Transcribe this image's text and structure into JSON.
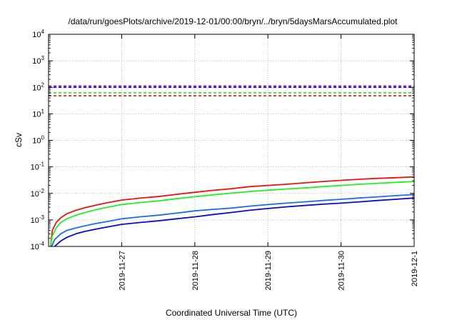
{
  "chart_data": {
    "type": "line",
    "title": "/data/run/goesPlots/archive/2019-12-01/00:00/bryn/../bryn/5daysMarsAccumulated.plot",
    "xlabel": "Coordinated Universal Time (UTC)",
    "ylabel": "cSv",
    "y_scale": "log",
    "ylim": [
      0.0001,
      10000
    ],
    "xlim": [
      "2019-11-26T00:00",
      "2019-12-01T00:00"
    ],
    "grid": true,
    "legend": "none",
    "x_ticks": [
      "2019-11-27",
      "2019-11-28",
      "2019-11-29",
      "2019-11-30",
      "2019-12-1"
    ],
    "y_ticks": [
      {
        "value": 0.0001,
        "base": "10",
        "exp": "-4"
      },
      {
        "value": 0.001,
        "base": "10",
        "exp": "-3"
      },
      {
        "value": 0.01,
        "base": "10",
        "exp": "-2"
      },
      {
        "value": 0.1,
        "base": "10",
        "exp": "-1"
      },
      {
        "value": 1,
        "base": "10",
        "exp": "0"
      },
      {
        "value": 10,
        "base": "10",
        "exp": "1"
      },
      {
        "value": 100,
        "base": "10",
        "exp": "2"
      },
      {
        "value": 1000,
        "base": "10",
        "exp": "3"
      },
      {
        "value": 10000,
        "base": "10",
        "exp": "4"
      }
    ],
    "reference_lines": [
      {
        "color": "#9400d3",
        "value": 112
      },
      {
        "color": "#0000cd",
        "value": 100
      },
      {
        "color": "#33dd33",
        "value": 62
      },
      {
        "color": "#ee1111",
        "value": 48
      }
    ],
    "series": [
      {
        "color": "#ee1111",
        "points": [
          [
            "2019-11-26T00:40",
            0.0001
          ],
          [
            "2019-11-26T01:15",
            0.0004
          ],
          [
            "2019-11-26T02:30",
            0.0008
          ],
          [
            "2019-11-26T04:00",
            0.0012
          ],
          [
            "2019-11-26T06:00",
            0.0017
          ],
          [
            "2019-11-26T09:00",
            0.0023
          ],
          [
            "2019-11-26T12:00",
            0.0029
          ],
          [
            "2019-11-26T16:00",
            0.0037
          ],
          [
            "2019-11-26T20:00",
            0.0046
          ],
          [
            "2019-11-27T00:00",
            0.0056
          ],
          [
            "2019-11-27T06:00",
            0.0066
          ],
          [
            "2019-11-27T12:00",
            0.0076
          ],
          [
            "2019-11-27T18:00",
            0.0092
          ],
          [
            "2019-11-28T00:00",
            0.011
          ],
          [
            "2019-11-28T06:00",
            0.013
          ],
          [
            "2019-11-28T12:00",
            0.015
          ],
          [
            "2019-11-28T18:00",
            0.018
          ],
          [
            "2019-11-29T00:00",
            0.02
          ],
          [
            "2019-11-29T06:00",
            0.022
          ],
          [
            "2019-11-29T12:00",
            0.025
          ],
          [
            "2019-11-29T18:00",
            0.028
          ],
          [
            "2019-11-30T00:00",
            0.031
          ],
          [
            "2019-11-30T06:00",
            0.034
          ],
          [
            "2019-11-30T12:00",
            0.037
          ],
          [
            "2019-11-30T18:00",
            0.039
          ],
          [
            "2019-12-01T00:00",
            0.042
          ]
        ]
      },
      {
        "color": "#22ee22",
        "points": [
          [
            "2019-11-26T00:40",
            0.0001
          ],
          [
            "2019-11-26T01:15",
            0.00025
          ],
          [
            "2019-11-26T02:30",
            0.0005
          ],
          [
            "2019-11-26T04:00",
            0.0008
          ],
          [
            "2019-11-26T06:00",
            0.0011
          ],
          [
            "2019-11-26T09:00",
            0.0015
          ],
          [
            "2019-11-26T12:00",
            0.0019
          ],
          [
            "2019-11-26T16:00",
            0.0025
          ],
          [
            "2019-11-26T20:00",
            0.0031
          ],
          [
            "2019-11-27T00:00",
            0.0038
          ],
          [
            "2019-11-27T06:00",
            0.0045
          ],
          [
            "2019-11-27T12:00",
            0.0052
          ],
          [
            "2019-11-27T18:00",
            0.0063
          ],
          [
            "2019-11-28T00:00",
            0.0075
          ],
          [
            "2019-11-28T06:00",
            0.0088
          ],
          [
            "2019-11-28T12:00",
            0.0102
          ],
          [
            "2019-11-28T18:00",
            0.0118
          ],
          [
            "2019-11-29T00:00",
            0.0132
          ],
          [
            "2019-11-29T06:00",
            0.0146
          ],
          [
            "2019-11-29T12:00",
            0.016
          ],
          [
            "2019-11-29T18:00",
            0.018
          ],
          [
            "2019-11-30T00:00",
            0.02
          ],
          [
            "2019-11-30T06:00",
            0.022
          ],
          [
            "2019-11-30T12:00",
            0.024
          ],
          [
            "2019-11-30T18:00",
            0.026
          ],
          [
            "2019-12-01T00:00",
            0.028
          ]
        ]
      },
      {
        "color": "#1a6fe0",
        "points": [
          [
            "2019-11-26T01:00",
            0.0001
          ],
          [
            "2019-11-26T02:00",
            0.00018
          ],
          [
            "2019-11-26T04:00",
            0.0003
          ],
          [
            "2019-11-26T06:00",
            0.0004
          ],
          [
            "2019-11-26T09:00",
            0.0005
          ],
          [
            "2019-11-26T12:00",
            0.0006
          ],
          [
            "2019-11-26T16:00",
            0.00075
          ],
          [
            "2019-11-26T20:00",
            0.0009
          ],
          [
            "2019-11-27T00:00",
            0.0011
          ],
          [
            "2019-11-27T06:00",
            0.0013
          ],
          [
            "2019-11-27T12:00",
            0.0015
          ],
          [
            "2019-11-27T18:00",
            0.0018
          ],
          [
            "2019-11-28T00:00",
            0.0022
          ],
          [
            "2019-11-28T06:00",
            0.0025
          ],
          [
            "2019-11-28T12:00",
            0.0028
          ],
          [
            "2019-11-28T18:00",
            0.0033
          ],
          [
            "2019-11-29T00:00",
            0.0038
          ],
          [
            "2019-11-29T06:00",
            0.0043
          ],
          [
            "2019-11-29T12:00",
            0.0048
          ],
          [
            "2019-11-29T18:00",
            0.0054
          ],
          [
            "2019-11-30T00:00",
            0.006
          ],
          [
            "2019-11-30T06:00",
            0.0067
          ],
          [
            "2019-11-30T12:00",
            0.0074
          ],
          [
            "2019-11-30T18:00",
            0.0082
          ],
          [
            "2019-12-01T00:00",
            0.009
          ]
        ]
      },
      {
        "color": "#0a0acd",
        "points": [
          [
            "2019-11-26T02:00",
            0.0001
          ],
          [
            "2019-11-26T04:00",
            0.00016
          ],
          [
            "2019-11-26T06:00",
            0.00022
          ],
          [
            "2019-11-26T09:00",
            0.0003
          ],
          [
            "2019-11-26T12:00",
            0.00037
          ],
          [
            "2019-11-26T16:00",
            0.00046
          ],
          [
            "2019-11-26T20:00",
            0.00056
          ],
          [
            "2019-11-27T00:00",
            0.00068
          ],
          [
            "2019-11-27T06:00",
            0.0008
          ],
          [
            "2019-11-27T12:00",
            0.00092
          ],
          [
            "2019-11-27T18:00",
            0.0011
          ],
          [
            "2019-11-28T00:00",
            0.0013
          ],
          [
            "2019-11-28T06:00",
            0.0016
          ],
          [
            "2019-11-28T12:00",
            0.0019
          ],
          [
            "2019-11-28T18:00",
            0.0023
          ],
          [
            "2019-11-29T00:00",
            0.0027
          ],
          [
            "2019-11-29T06:00",
            0.0031
          ],
          [
            "2019-11-29T12:00",
            0.0035
          ],
          [
            "2019-11-29T18:00",
            0.0039
          ],
          [
            "2019-11-30T00:00",
            0.0043
          ],
          [
            "2019-11-30T06:00",
            0.0048
          ],
          [
            "2019-11-30T12:00",
            0.0054
          ],
          [
            "2019-11-30T18:00",
            0.006
          ],
          [
            "2019-12-01T00:00",
            0.0067
          ]
        ]
      }
    ]
  }
}
